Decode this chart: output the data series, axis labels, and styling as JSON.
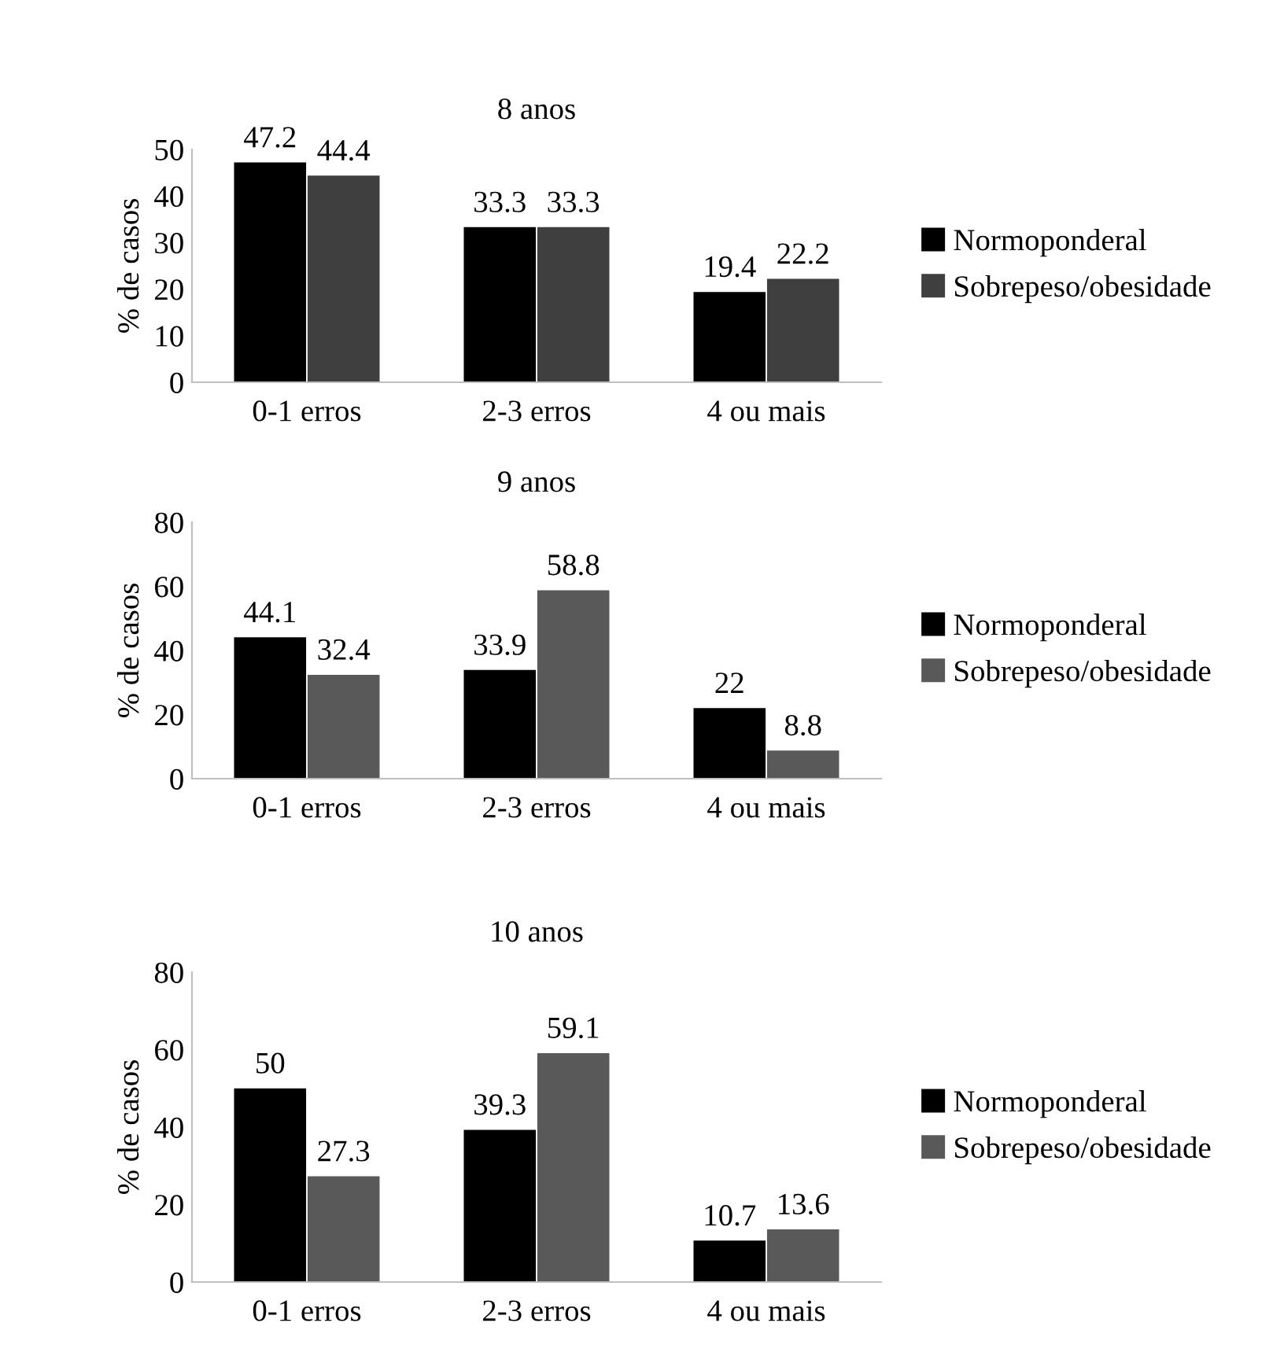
{
  "chart_data": [
    {
      "type": "bar",
      "title": "8 anos",
      "ylabel": "% de casos",
      "categories": [
        "0-1 erros",
        "2-3 erros",
        "4 ou mais"
      ],
      "series": [
        {
          "name": "Normoponderal",
          "color": "#000000",
          "values": [
            47.2,
            33.3,
            19.4
          ]
        },
        {
          "name": "Sobrepeso/obesidade",
          "color": "#3f3f3f",
          "values": [
            44.4,
            33.3,
            22.2
          ]
        }
      ],
      "ylim": [
        0,
        50
      ],
      "yticks": [
        0,
        10,
        20,
        30,
        40,
        50
      ],
      "data_labels": true,
      "legend": "right",
      "grid": false
    },
    {
      "type": "bar",
      "title": "9 anos",
      "ylabel": "% de casos",
      "categories": [
        "0-1 erros",
        "2-3 erros",
        "4 ou mais"
      ],
      "series": [
        {
          "name": "Normoponderal",
          "color": "#000000",
          "values": [
            44.1,
            33.9,
            22
          ]
        },
        {
          "name": "Sobrepeso/obesidade",
          "color": "#595959",
          "values": [
            32.4,
            58.8,
            8.8
          ]
        }
      ],
      "ylim": [
        0,
        80
      ],
      "yticks": [
        0,
        20,
        40,
        60,
        80
      ],
      "data_labels": true,
      "legend": "right",
      "grid": false
    },
    {
      "type": "bar",
      "title": "10 anos",
      "ylabel": "% de casos",
      "categories": [
        "0-1 erros",
        "2-3 erros",
        "4 ou mais"
      ],
      "series": [
        {
          "name": "Normoponderal",
          "color": "#000000",
          "values": [
            50,
            39.3,
            10.7
          ]
        },
        {
          "name": "Sobrepeso/obesidade",
          "color": "#595959",
          "values": [
            27.3,
            59.1,
            13.6
          ]
        }
      ],
      "ylim": [
        0,
        80
      ],
      "yticks": [
        0,
        20,
        40,
        60,
        80
      ],
      "data_labels": true,
      "legend": "right",
      "grid": false
    }
  ]
}
